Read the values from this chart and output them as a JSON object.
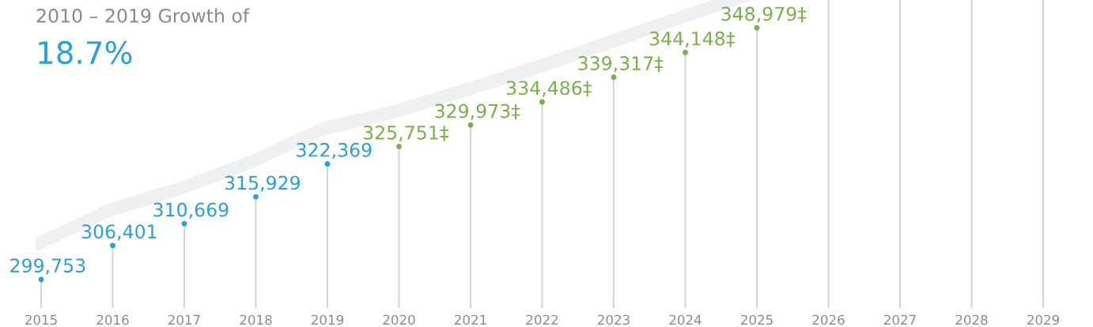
{
  "chart_data": {
    "type": "lollipop",
    "title": "2010 – 2019 Growth of",
    "subtitle": "18.7%",
    "categories": [
      "2015",
      "2016",
      "2017",
      "2018",
      "2019",
      "2020",
      "2021",
      "2022",
      "2023",
      "2024",
      "2025",
      "2026",
      "2027",
      "2028",
      "2029"
    ],
    "grid": "x",
    "series": [
      {
        "color": "#2a9fd8",
        "values": [
          299753,
          306401,
          310669,
          315929,
          322369,
          null,
          null,
          null,
          null,
          null,
          null,
          null,
          null,
          null,
          null
        ],
        "value_labels": [
          "299,753",
          "306,401",
          "310,669",
          "315,929",
          "322,369",
          null,
          null,
          null,
          null,
          null,
          null,
          null,
          null,
          null,
          null
        ]
      },
      {
        "color": "#7ab04a",
        "values": [
          null,
          null,
          null,
          null,
          null,
          325751,
          329973,
          334486,
          339317,
          344148,
          348979,
          null,
          null,
          null,
          null
        ],
        "value_labels": [
          null,
          null,
          null,
          null,
          null,
          "325,751‡",
          "329,973‡",
          "334,486‡",
          "339,317‡",
          "344,148‡",
          "348,979‡",
          null,
          null,
          null,
          null
        ]
      }
    ]
  }
}
